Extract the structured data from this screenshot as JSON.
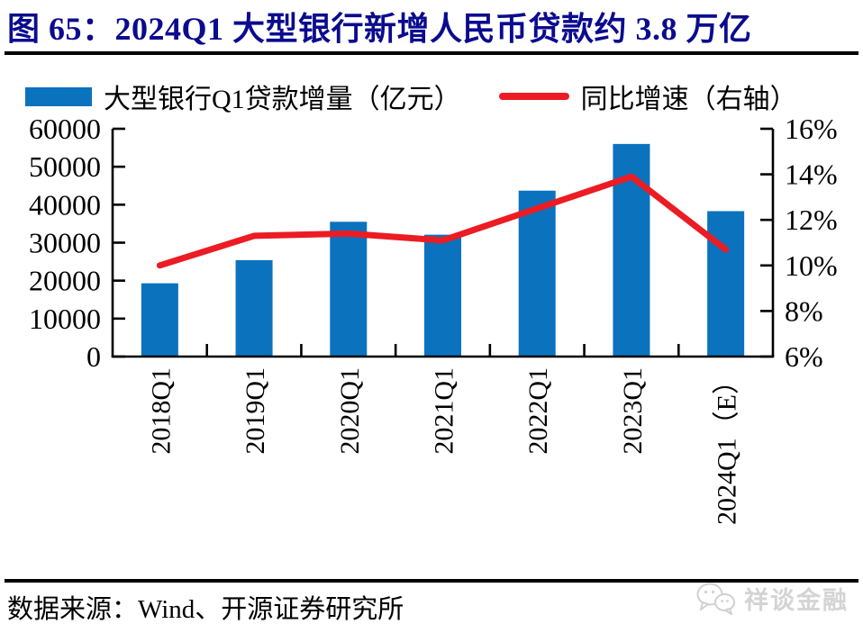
{
  "figure": {
    "title": "图 65：2024Q1 大型银行新增人民币贷款约 3.8 万亿",
    "title_color": "#0b0b8f",
    "source": "数据来源：Wind、开源证券研究所",
    "watermark": "祥谈金融"
  },
  "chart_data": {
    "type": "bar",
    "subtype": "bar+line combo, dual axis",
    "categories": [
      "2018Q1",
      "2019Q1",
      "2020Q1",
      "2021Q1",
      "2022Q1",
      "2023Q1",
      "2024Q1（E）"
    ],
    "series": [
      {
        "name": "大型银行Q1贷款增量（亿元）",
        "type": "bar",
        "axis": "left",
        "color": "#0b72be",
        "values": [
          19300,
          25400,
          35500,
          32100,
          43700,
          56000,
          38300
        ]
      },
      {
        "name": "同比增速（右轴）",
        "type": "line",
        "axis": "right",
        "color": "#ec1c24",
        "values": [
          10.0,
          11.3,
          11.4,
          11.1,
          12.5,
          13.9,
          10.7
        ]
      }
    ],
    "left_axis": {
      "min": 0,
      "max": 60000,
      "step": 10000,
      "tick_labels": [
        "0",
        "10000",
        "20000",
        "30000",
        "40000",
        "50000",
        "60000"
      ]
    },
    "right_axis": {
      "min": 6,
      "max": 16,
      "step": 2,
      "tick_labels": [
        "6%",
        "8%",
        "10%",
        "12%",
        "14%",
        "16%"
      ]
    },
    "legend_position": "top",
    "grid": false
  }
}
